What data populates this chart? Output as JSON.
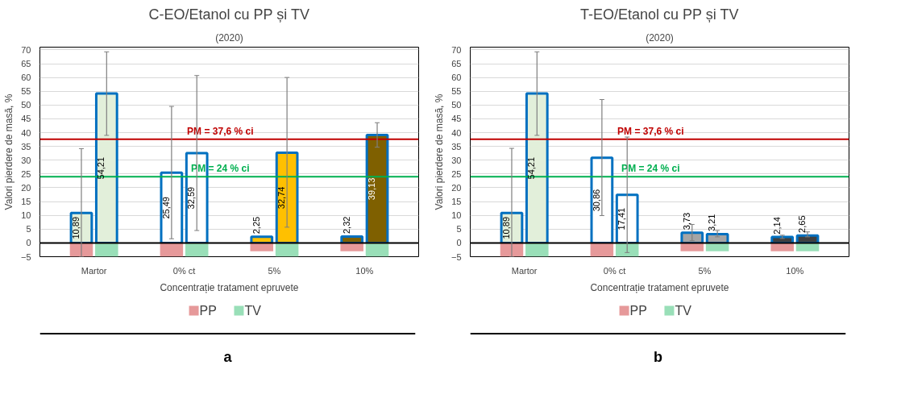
{
  "chart_data": [
    {
      "type": "bar",
      "title": "C-EO/Etanol cu PP și TV",
      "subtitle": "(2020)",
      "xlabel": "Concentrație tratament epruvete",
      "ylabel": "Valori pierdere de masă, %",
      "annotations": [
        "a"
      ],
      "categories": [
        "Martor",
        "0% ct",
        "5%",
        "10%"
      ],
      "ylim": [
        -5,
        71
      ],
      "yticks": [
        -5,
        0,
        5,
        10,
        15,
        20,
        25,
        30,
        35,
        40,
        45,
        50,
        55,
        60,
        65,
        70
      ],
      "grid": "y",
      "legend": "bottom",
      "series": [
        {
          "color": "#0070c0",
          "colors": [
            "#e2efda",
            "#ffffff",
            "#ffc000",
            "#7f6000"
          ],
          "values": [
            10.89,
            25.49,
            2.25,
            2.32
          ],
          "value_labels": [
            "10,89",
            "25,49",
            "2,25",
            "2,32"
          ],
          "errors": [
            [
              -5,
              34.2
            ],
            [
              1.5,
              49.5
            ],
            null,
            null
          ]
        },
        {
          "color": "#0070c0",
          "colors": [
            "#e2efda",
            "#ffffff",
            "#ffc000",
            "#7f6000"
          ],
          "values": [
            54.21,
            32.59,
            32.74,
            39.13
          ],
          "value_labels": [
            "54,21",
            "32,59",
            "32,74",
            "39,13"
          ],
          "errors": [
            [
              39,
              69.3
            ],
            [
              4.5,
              60.7
            ],
            [
              5.7,
              60
            ],
            [
              34.7,
              43.6
            ]
          ]
        },
        {
          "name": "PP",
          "color": "#e6999a",
          "values": [
            -5,
            -5,
            -3,
            -3
          ]
        },
        {
          "name": "TV",
          "color": "#99dfb8",
          "values": [
            -5,
            -5,
            -5,
            -5
          ]
        }
      ],
      "ref_lines": [
        {
          "axis": "y",
          "value": 37.6,
          "label": "PM = 37,6 % ci",
          "color": "#c00000"
        },
        {
          "axis": "y",
          "value": 24,
          "label": "PM = 24 % ci",
          "color": "#00b050"
        },
        {
          "axis": "y",
          "value": 0,
          "color": "#000000"
        }
      ]
    },
    {
      "type": "bar",
      "title": "T-EO/Etanol cu PP și TV",
      "subtitle": "(2020)",
      "xlabel": "Concentrație tratament epruvete",
      "ylabel": "Valori pierdere de masă, %",
      "annotations": [
        "b"
      ],
      "categories": [
        "Martor",
        "0% ct",
        "5%",
        "10%"
      ],
      "ylim": [
        -5,
        71
      ],
      "yticks": [
        -5,
        0,
        5,
        10,
        15,
        20,
        25,
        30,
        35,
        40,
        45,
        50,
        55,
        60,
        65,
        70
      ],
      "grid": "y",
      "legend": "bottom",
      "series": [
        {
          "color": "#0070c0",
          "colors": [
            "#e2efda",
            "#ffffff",
            "#a5a5a5",
            "#404040"
          ],
          "values": [
            10.89,
            30.86,
            3.73,
            2.14
          ],
          "value_labels": [
            "10,89",
            "30,86",
            "3,73",
            "2,14"
          ],
          "errors": [
            [
              -5,
              34.3
            ],
            [
              9.9,
              52
            ],
            [
              0.8,
              6.7
            ],
            [
              1.6,
              2.8
            ]
          ]
        },
        {
          "color": "#0070c0",
          "colors": [
            "#e2efda",
            "#ffffff",
            "#a5a5a5",
            "#404040"
          ],
          "values": [
            54.21,
            17.41,
            3.21,
            2.65
          ],
          "value_labels": [
            "54,21",
            "17,41",
            "3,21",
            "2,65"
          ],
          "errors": [
            [
              39,
              69.3
            ],
            [
              -3.5,
              38.4
            ],
            [
              2.2,
              4.5
            ],
            [
              2.2,
              4
            ]
          ]
        },
        {
          "name": "PP",
          "color": "#e6999a",
          "values": [
            -5,
            -5,
            -3,
            -3
          ]
        },
        {
          "name": "TV",
          "color": "#99dfb8",
          "values": [
            -5,
            -5,
            -3,
            -3
          ]
        }
      ],
      "ref_lines": [
        {
          "axis": "y",
          "value": 37.6,
          "label": "PM = 37,6 % ci",
          "color": "#c00000"
        },
        {
          "axis": "y",
          "value": 24,
          "label": "PM = 24 % ci",
          "color": "#00b050"
        },
        {
          "axis": "y",
          "value": 0,
          "color": "#000000"
        }
      ]
    }
  ]
}
